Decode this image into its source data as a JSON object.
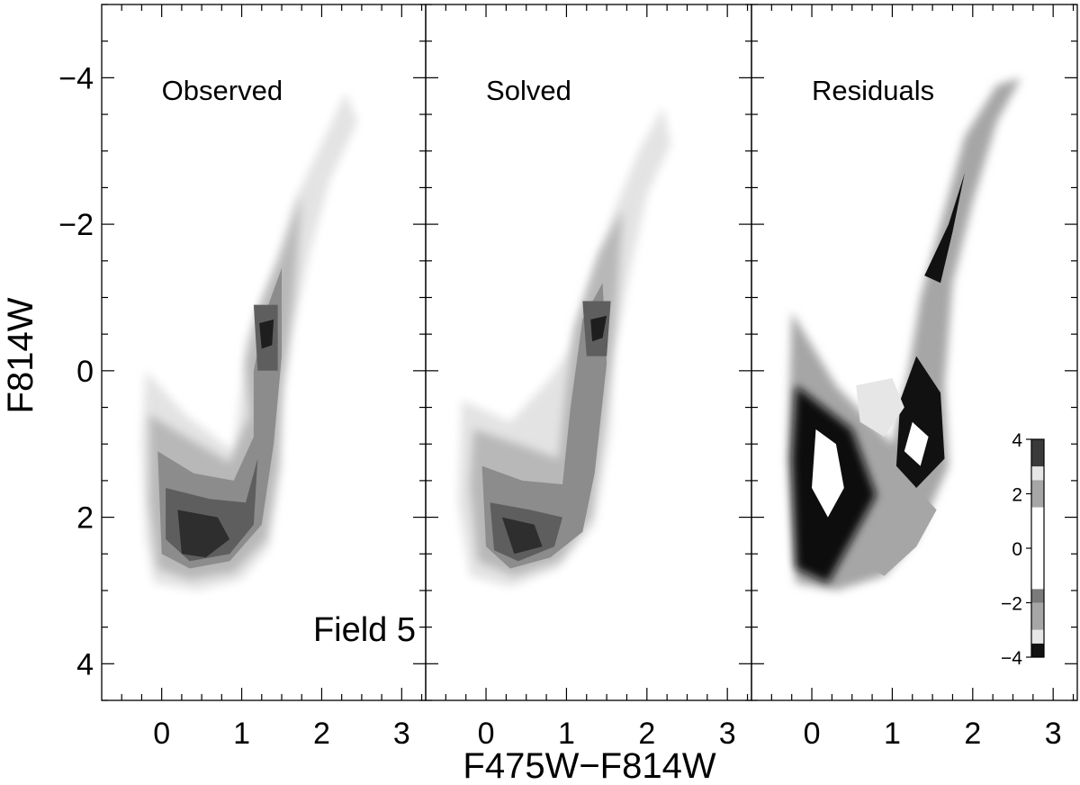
{
  "chart_data": {
    "type": "heatmap",
    "description_kind": "color-magnitude diagram Hess plots",
    "xlabel": "F475W−F814W",
    "ylabel": "F814W",
    "xlim": [
      -0.75,
      3.3
    ],
    "ylim": [
      4.5,
      -5.0
    ],
    "y_inverted": true,
    "x_ticks": [
      0,
      1,
      2,
      3
    ],
    "y_ticks": [
      -4,
      -2,
      0,
      2,
      4
    ],
    "annotation": "Field 5",
    "panels": [
      {
        "title": "Observed",
        "shading": "grayscale density contours",
        "features": {
          "red_clump": [
            1.3,
            -0.5
          ],
          "main_sequence_turnoff_peak": [
            0.5,
            2.2
          ],
          "rgb_tip": [
            2.3,
            -4.0
          ]
        }
      },
      {
        "title": "Solved",
        "shading": "grayscale density contours",
        "features": {
          "red_clump": [
            1.4,
            -0.6
          ],
          "main_sequence_turnoff_peak": [
            0.4,
            2.3
          ],
          "rgb_tip": [
            2.2,
            -3.6
          ]
        }
      },
      {
        "title": "Residuals",
        "shading": "residual significance contours",
        "features": {
          "positive_cluster": [
            0.4,
            1.3
          ],
          "negative_cluster": [
            1.1,
            2.4
          ]
        }
      }
    ],
    "colorbar": {
      "ticks": [
        4,
        2,
        0,
        -2,
        -4
      ],
      "levels": [
        {
          "from": 3,
          "to": 4,
          "color": "#3a3a3a"
        },
        {
          "from": 2.5,
          "to": 3,
          "color": "#e6e6e6"
        },
        {
          "from": 1.5,
          "to": 2.5,
          "color": "#a6a6a6"
        },
        {
          "from": -1.5,
          "to": 1.5,
          "color": "#ffffff"
        },
        {
          "from": -2,
          "to": -1.5,
          "color": "#7a7a7a"
        },
        {
          "from": -3,
          "to": -2,
          "color": "#a6a6a6"
        },
        {
          "from": -3.5,
          "to": -3,
          "color": "#e6e6e6"
        },
        {
          "from": -4,
          "to": -3.5,
          "color": "#111111"
        }
      ]
    },
    "grid": false
  }
}
